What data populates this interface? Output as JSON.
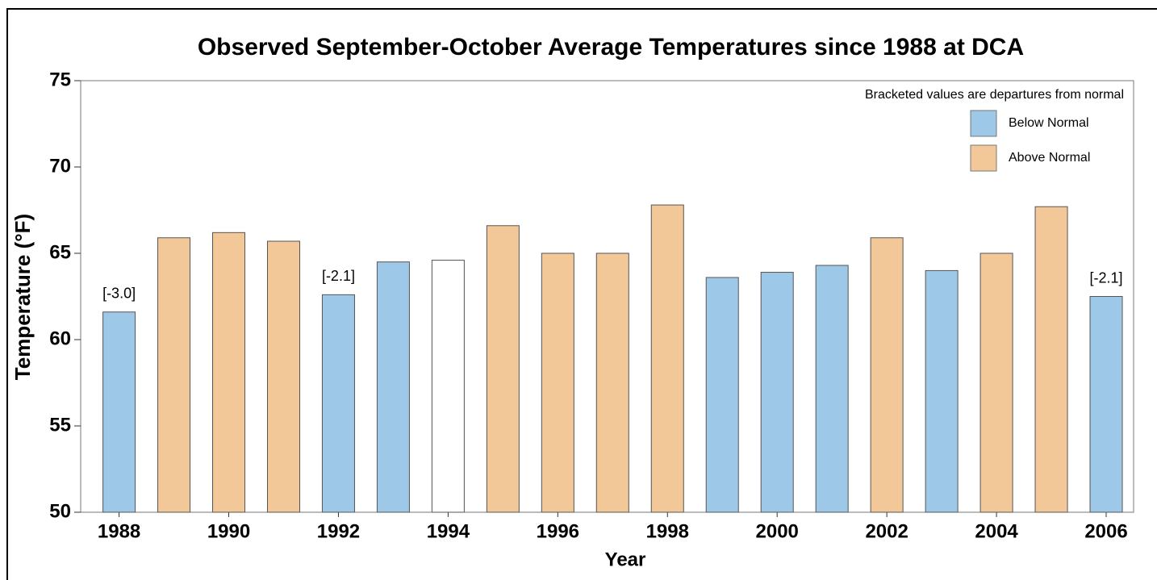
{
  "chart_data": {
    "type": "bar",
    "title": "Observed September-October Average Temperatures since 1988 at DCA",
    "x_label": "Year",
    "y_label": "Temperature (°F)",
    "legend_title": "Bracketed values are departures from normal",
    "x": [
      1988,
      1989,
      1990,
      1991,
      1992,
      1993,
      1994,
      1995,
      1996,
      1997,
      1998,
      1999,
      2000,
      2001,
      2002,
      2003,
      2004,
      2005,
      2006
    ],
    "series": [
      {
        "name": "Below Normal",
        "color": "#9dc8e8",
        "values": [
          61.6,
          null,
          null,
          null,
          62.6,
          64.5,
          null,
          null,
          null,
          null,
          null,
          63.6,
          63.9,
          64.3,
          null,
          64.0,
          null,
          null,
          62.5
        ]
      },
      {
        "name": "Above Normal",
        "color": "#f3c898",
        "values": [
          null,
          65.9,
          66.2,
          65.7,
          null,
          null,
          null,
          66.6,
          65.0,
          65.0,
          67.8,
          null,
          null,
          null,
          65.9,
          null,
          65.0,
          67.7,
          null
        ]
      },
      {
        "color": "#ffffff",
        "values": [
          null,
          null,
          null,
          null,
          null,
          null,
          64.6,
          null,
          null,
          null,
          null,
          null,
          null,
          null,
          null,
          null,
          null,
          null,
          null
        ]
      }
    ],
    "annotations": [
      {
        "text": "[-3.0]",
        "x": 1988
      },
      {
        "text": "[-2.1]",
        "x": 1992
      },
      {
        "text": "[-2.1]",
        "x": 2006
      }
    ],
    "xlim": [
      1987.3,
      2006.5
    ],
    "xticks": [
      1988,
      1990,
      1992,
      1994,
      1996,
      1998,
      2000,
      2002,
      2004,
      2006
    ],
    "ylim": [
      50,
      75
    ],
    "yticks": [
      50,
      55,
      60,
      65,
      70,
      75
    ],
    "legend": "upper right"
  }
}
